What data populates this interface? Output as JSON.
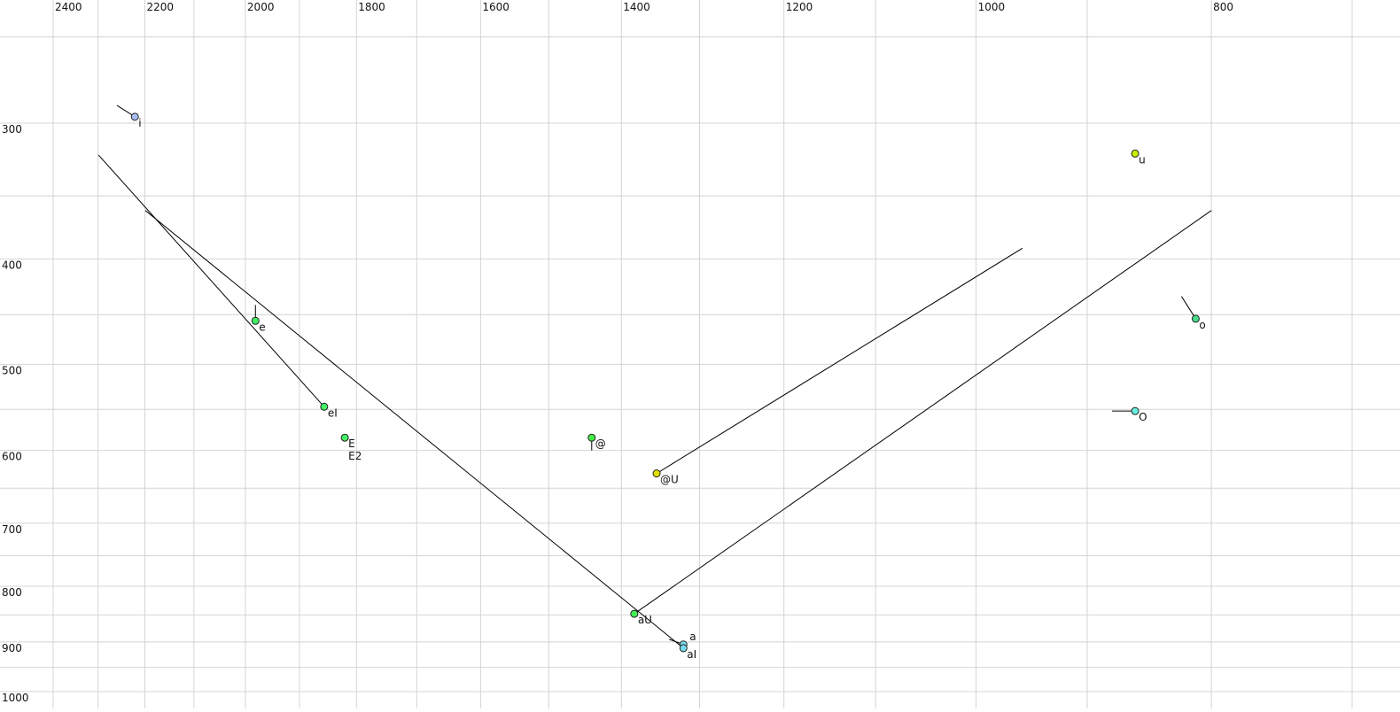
{
  "chart_data": {
    "type": "scatter",
    "title": "",
    "xlabel": "",
    "ylabel": "",
    "x_scale": "log",
    "y_scale": "log",
    "x_reversed": true,
    "xlim": [
      2400,
      700
    ],
    "ylim": [
      250,
      1000
    ],
    "grid": true,
    "x_ticks": [
      2400,
      2200,
      2000,
      1800,
      1600,
      1400,
      1200,
      1000,
      800
    ],
    "x_gridlines": [
      2400,
      2300,
      2200,
      2100,
      2000,
      1900,
      1800,
      1700,
      1600,
      1500,
      1400,
      1300,
      1200,
      1100,
      1000,
      900,
      800,
      700
    ],
    "y_ticks": [
      300,
      400,
      500,
      600,
      700,
      800,
      900,
      1000
    ],
    "y_gridlines": [
      250,
      300,
      350,
      400,
      450,
      500,
      550,
      600,
      650,
      700,
      750,
      800,
      850,
      900,
      950,
      1000
    ],
    "points": [
      {
        "label": "i",
        "F2": 2221,
        "F1": 296,
        "color": "#a8bef2",
        "trail": [
          [
            2259,
            289
          ]
        ]
      },
      {
        "label": "u",
        "F2": 860,
        "F1": 320,
        "color": "#ccf000",
        "trail": []
      },
      {
        "label": "e",
        "F2": 1981,
        "F1": 456,
        "color": "#44ee66",
        "trail": [
          [
            1981,
            441
          ]
        ]
      },
      {
        "label": "eI",
        "F2": 1856,
        "F1": 547,
        "color": "#44ee66",
        "trail": [
          [
            2299,
            321
          ]
        ]
      },
      {
        "label": "E",
        "F2": 1820,
        "F1": 584,
        "color": "#44ee66",
        "trail": []
      },
      {
        "label": "E2",
        "F2": 1820,
        "F1": 584,
        "color": "#44ee66",
        "trail": [],
        "label_only": true
      },
      {
        "label": "@",
        "F2": 1440,
        "F1": 584,
        "color": "#44ee44",
        "trail": [
          [
            1440,
            600
          ]
        ]
      },
      {
        "label": "@U",
        "F2": 1354,
        "F1": 630,
        "color": "#e0e000",
        "trail": [
          [
            957,
            391
          ]
        ]
      },
      {
        "label": "aU",
        "F2": 1383,
        "F1": 848,
        "color": "#44ee55",
        "trail": [
          [
            800,
            361
          ]
        ]
      },
      {
        "label": "a",
        "F2": 1320,
        "F1": 905,
        "color": "#77ddee",
        "trail": [
          [
            1338,
            895
          ]
        ]
      },
      {
        "label": "aI",
        "F2": 1320,
        "F1": 912,
        "color": "#77ddee",
        "trail": [
          [
            2199,
            361
          ]
        ]
      },
      {
        "label": "o",
        "F2": 812,
        "F1": 454,
        "color": "#44dd88",
        "trail": [
          [
            823,
            433
          ]
        ]
      },
      {
        "label": "O",
        "F2": 860,
        "F1": 552,
        "color": "#66eedd",
        "trail": [
          [
            879,
            552
          ]
        ]
      }
    ]
  }
}
